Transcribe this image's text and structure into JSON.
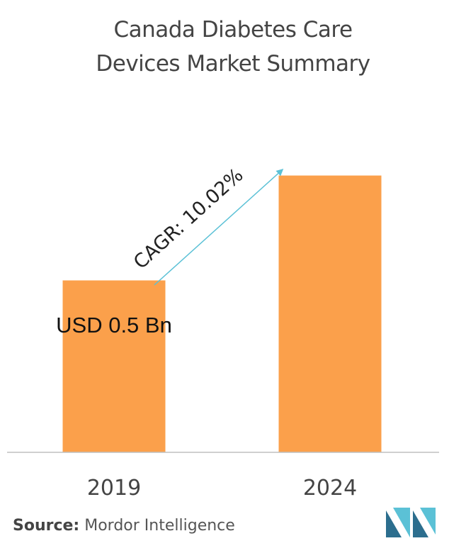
{
  "title": {
    "line1": "Canada Diabetes Care",
    "line2": "Devices Market Summary"
  },
  "chart_data": {
    "type": "bar",
    "categories": [
      "2019",
      "2024"
    ],
    "values": [
      0.5,
      0.805
    ],
    "ylim": [
      0,
      1
    ],
    "value_label": "USD 0.5 Bn",
    "annotation": "CAGR: 10.02%",
    "grid": false,
    "bar_color": "#FBA04B",
    "arrow_color": "#5BC1D6"
  },
  "footer": {
    "source_label": "Source:",
    "source_text": "Mordor Intelligence"
  },
  "colors": {
    "logo_dark": "#2C6E8E",
    "logo_light": "#5BC1D6"
  }
}
